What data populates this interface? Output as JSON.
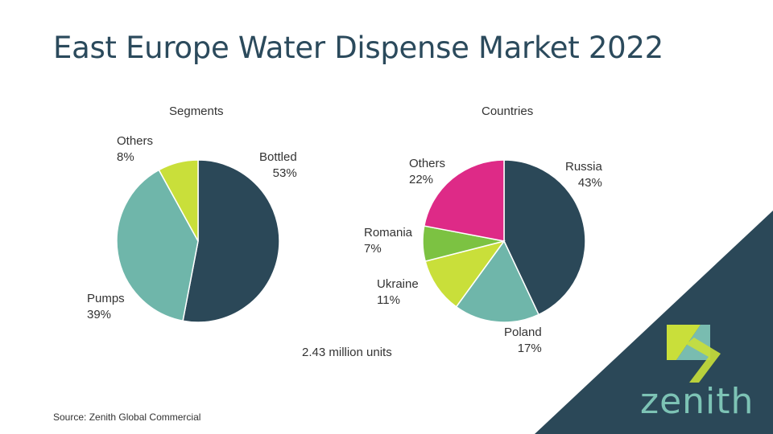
{
  "title": "East Europe Water Dispense Market 2022",
  "chart_data": [
    {
      "type": "pie",
      "title": "Segments",
      "categories": [
        "Bottled",
        "Pumps",
        "Others"
      ],
      "values": [
        53,
        39,
        8
      ],
      "labels": [
        "53%",
        "39%",
        "8%"
      ],
      "colors": [
        "#2b4858",
        "#6fb6aa",
        "#c9df3a"
      ]
    },
    {
      "type": "pie",
      "title": "Countries",
      "categories": [
        "Russia",
        "Poland",
        "Ukraine",
        "Romania",
        "Others"
      ],
      "values": [
        43,
        17,
        11,
        7,
        22
      ],
      "labels": [
        "43%",
        "17%",
        "11%",
        "7%",
        "22%"
      ],
      "colors": [
        "#2b4858",
        "#6fb6aa",
        "#c9df3a",
        "#7cc242",
        "#de2a87"
      ]
    }
  ],
  "total_units": "2.43 million units",
  "source": "Source: Zenith Global Commercial",
  "brand": {
    "name": "zenith",
    "colors": {
      "dark": "#2b4858",
      "teal": "#7dc3b5",
      "lime": "#c9df3a"
    }
  }
}
